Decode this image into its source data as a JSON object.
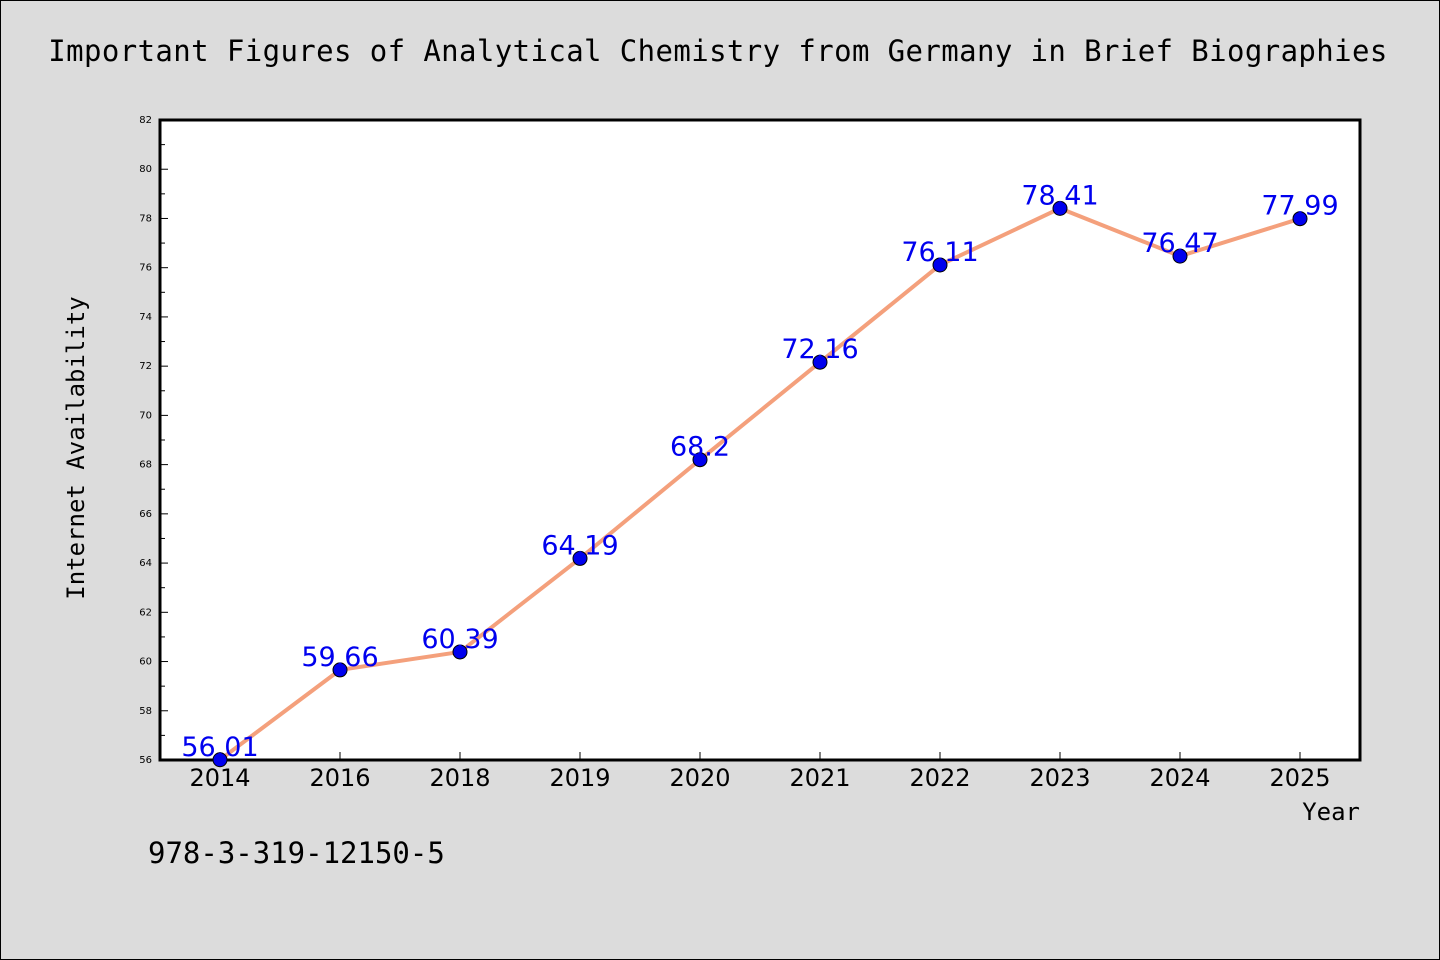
{
  "chart_data": {
    "type": "line",
    "title": "Important Figures of Analytical Chemistry from Germany in Brief Biographies",
    "xlabel": "Year",
    "ylabel": "Internet Availability",
    "categories": [
      "2014",
      "2016",
      "2018",
      "2019",
      "2020",
      "2021",
      "2022",
      "2023",
      "2024",
      "2025"
    ],
    "values": [
      56.01,
      59.66,
      60.39,
      64.19,
      68.2,
      72.16,
      76.11,
      78.41,
      76.47,
      77.99
    ],
    "data_labels": [
      "56.01",
      "59.66",
      "60.39",
      "64.19",
      "68.2",
      "72.16",
      "76.11",
      "78.41",
      "76.47",
      "77.99"
    ],
    "ylim": [
      56,
      82
    ],
    "yticks": [
      "56",
      "58",
      "60",
      "62",
      "64",
      "66",
      "68",
      "70",
      "72",
      "74",
      "76",
      "78",
      "80",
      "82"
    ],
    "grid": false,
    "legend": "none",
    "colors": {
      "line": "#f4a07c",
      "marker": "#0000ee",
      "label": "#0000ee",
      "plot_bg": "#ffffff",
      "page_bg": "#dcdcdc"
    }
  },
  "footer": {
    "isbn": "978-3-319-12150-5"
  }
}
